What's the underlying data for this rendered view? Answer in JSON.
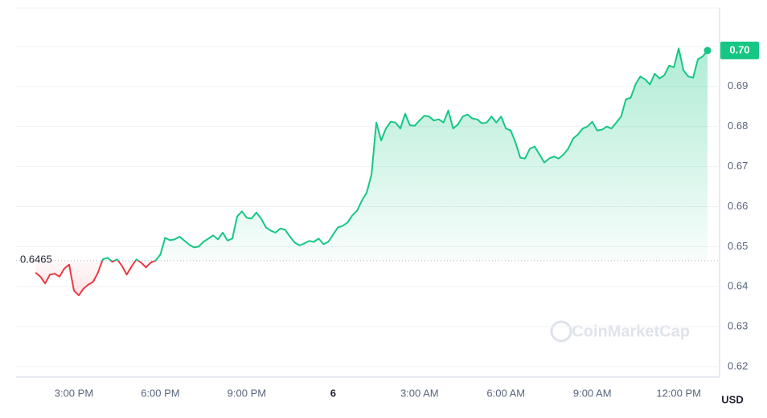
{
  "chart_data": {
    "type": "line",
    "categories": [
      null,
      null,
      null,
      null,
      null,
      null,
      null,
      null,
      "3:00 PM",
      null,
      null,
      null,
      null,
      null,
      null,
      null,
      null,
      null,
      null,
      null,
      null,
      null,
      null,
      null,
      null,
      null,
      "6:00 PM",
      null,
      null,
      null,
      null,
      null,
      null,
      null,
      null,
      null,
      null,
      null,
      null,
      null,
      null,
      null,
      null,
      null,
      "9:00 PM",
      null,
      null,
      null,
      null,
      null,
      null,
      null,
      null,
      null,
      null,
      null,
      null,
      null,
      null,
      null,
      null,
      null,
      "6",
      null,
      null,
      null,
      null,
      null,
      null,
      null,
      null,
      null,
      null,
      null,
      null,
      null,
      null,
      null,
      null,
      null,
      "3:00 AM",
      null,
      null,
      null,
      null,
      null,
      null,
      null,
      null,
      null,
      null,
      null,
      null,
      null,
      null,
      null,
      null,
      null,
      "6:00 AM",
      null,
      null,
      null,
      null,
      null,
      null,
      null,
      null,
      null,
      null,
      null,
      null,
      null,
      null,
      null,
      null,
      null,
      "9:00 AM",
      null,
      null,
      null,
      null,
      null,
      null,
      null,
      null,
      null,
      null,
      null,
      null,
      null,
      null,
      null,
      null,
      null,
      "12:00 PM",
      null,
      null,
      null,
      null,
      null,
      null
    ],
    "values": [
      0.6435,
      0.6425,
      0.6408,
      0.643,
      0.6432,
      0.6425,
      0.6445,
      0.6455,
      0.639,
      0.6378,
      0.6395,
      0.6405,
      0.6412,
      0.6435,
      0.6468,
      0.6472,
      0.6462,
      0.6468,
      0.6452,
      0.643,
      0.645,
      0.6468,
      0.646,
      0.6448,
      0.646,
      0.6465,
      0.648,
      0.6522,
      0.6516,
      0.6518,
      0.6525,
      0.6515,
      0.6505,
      0.6498,
      0.65,
      0.6512,
      0.652,
      0.6528,
      0.6518,
      0.6535,
      0.6515,
      0.652,
      0.6575,
      0.6588,
      0.6572,
      0.657,
      0.6585,
      0.657,
      0.6548,
      0.654,
      0.6535,
      0.6545,
      0.6542,
      0.6525,
      0.651,
      0.6503,
      0.6508,
      0.6514,
      0.6512,
      0.652,
      0.6506,
      0.6512,
      0.653,
      0.6548,
      0.6552,
      0.656,
      0.6578,
      0.659,
      0.6615,
      0.6635,
      0.668,
      0.681,
      0.6765,
      0.6795,
      0.6812,
      0.681,
      0.6795,
      0.6832,
      0.6803,
      0.6802,
      0.6815,
      0.6827,
      0.6825,
      0.6815,
      0.6818,
      0.681,
      0.684,
      0.6795,
      0.6805,
      0.6825,
      0.683,
      0.682,
      0.6818,
      0.6808,
      0.681,
      0.6825,
      0.681,
      0.6825,
      0.6795,
      0.679,
      0.676,
      0.6722,
      0.672,
      0.6745,
      0.675,
      0.673,
      0.671,
      0.672,
      0.6725,
      0.672,
      0.673,
      0.6745,
      0.677,
      0.678,
      0.6795,
      0.68,
      0.6812,
      0.679,
      0.6792,
      0.68,
      0.6795,
      0.681,
      0.6825,
      0.6868,
      0.6872,
      0.6905,
      0.6925,
      0.6918,
      0.6905,
      0.6932,
      0.692,
      0.6928,
      0.6952,
      0.6948,
      0.6995,
      0.694,
      0.6925,
      0.6922,
      0.6968,
      0.6975,
      0.699
    ],
    "last_label": "0.70",
    "baseline": 0.6465,
    "up_color": "#16c784",
    "down_color": "#ea3943",
    "ylim": [
      0.6174,
      0.7096
    ],
    "yticks": [
      0.62,
      0.63,
      0.64,
      0.65,
      0.66,
      0.67,
      0.68,
      0.69,
      {
        "value": 0.7,
        "label": "0.70"
      }
    ],
    "y_unit": "USD",
    "watermark": "CoinMarketCap",
    "grid": true
  }
}
